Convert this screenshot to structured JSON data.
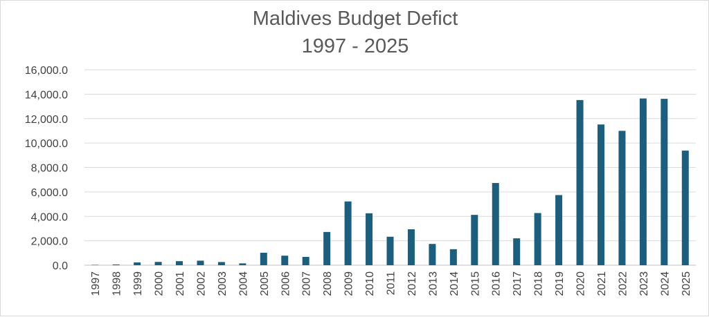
{
  "chart_data": {
    "type": "bar",
    "title": "Maldives Budget Defict",
    "subtitle": "1997 - 2025",
    "xlabel": "",
    "ylabel": "",
    "ylim": [
      0,
      16000
    ],
    "yticks": [
      0,
      2000,
      4000,
      6000,
      8000,
      10000,
      12000,
      14000,
      16000
    ],
    "ytick_labels": [
      "0.0",
      "2,000.0",
      "4,000.0",
      "6,000.0",
      "8,000.0",
      "10,000.0",
      "12,000.0",
      "14,000.0",
      "16,000.0"
    ],
    "grid": true,
    "legend": "none",
    "bar_color": "#1b5e7d",
    "categories": [
      "1997",
      "1998",
      "1999",
      "2000",
      "2001",
      "2002",
      "2003",
      "2004",
      "2005",
      "2006",
      "2007",
      "2008",
      "2009",
      "2010",
      "2011",
      "2012",
      "2013",
      "2014",
      "2015",
      "2016",
      "2017",
      "2018",
      "2019",
      "2020",
      "2021",
      "2022",
      "2023",
      "2024",
      "2025"
    ],
    "values": [
      30,
      60,
      230,
      270,
      330,
      370,
      260,
      150,
      1020,
      780,
      680,
      2720,
      5220,
      4250,
      2330,
      2940,
      1740,
      1310,
      4120,
      6730,
      2200,
      4270,
      5740,
      13520,
      11520,
      11000,
      13650,
      13620,
      9380
    ]
  }
}
